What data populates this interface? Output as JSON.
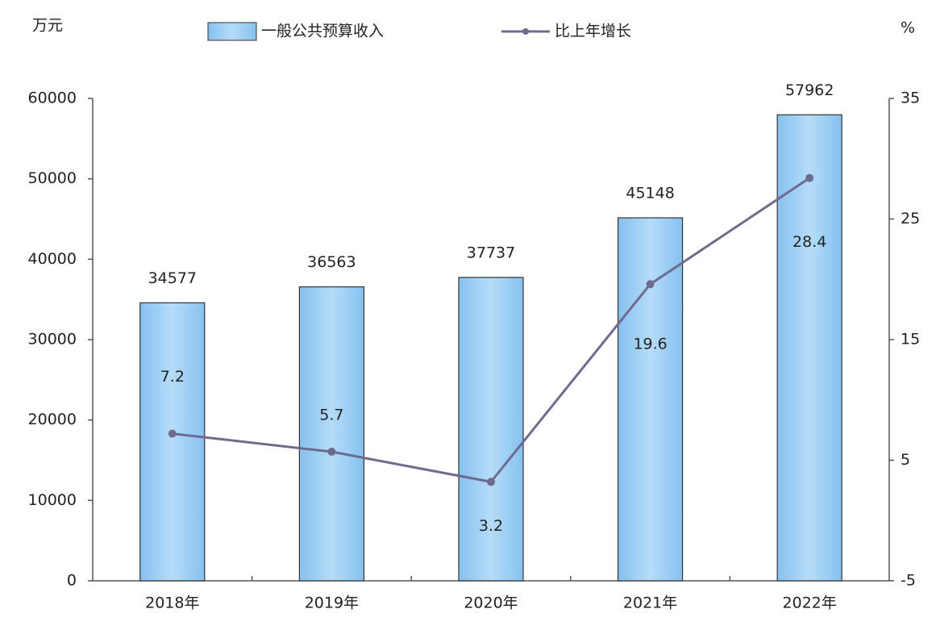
{
  "chart_data": {
    "type": "bar-line",
    "y_label": "万元",
    "y2_label": "%",
    "categories": [
      "2018年",
      "2019年",
      "2020年",
      "2021年",
      "2022年"
    ],
    "series": [
      {
        "name": "一般公共预算收入",
        "type": "bar",
        "color": "#9fcff3",
        "values": [
          34577,
          36563,
          37737,
          45148,
          57962
        ]
      },
      {
        "name": "比上年增长",
        "type": "line",
        "axis": "y2",
        "color": "#6f6b8f",
        "values": [
          7.2,
          5.7,
          3.2,
          19.6,
          28.4
        ]
      }
    ],
    "ylim": [
      0,
      60000
    ],
    "yticks": [
      0,
      10000,
      20000,
      30000,
      40000,
      50000,
      60000
    ],
    "y2lim": [
      -5,
      35
    ],
    "y2ticks": [
      -5,
      5,
      15,
      25,
      35
    ],
    "grid": false
  }
}
